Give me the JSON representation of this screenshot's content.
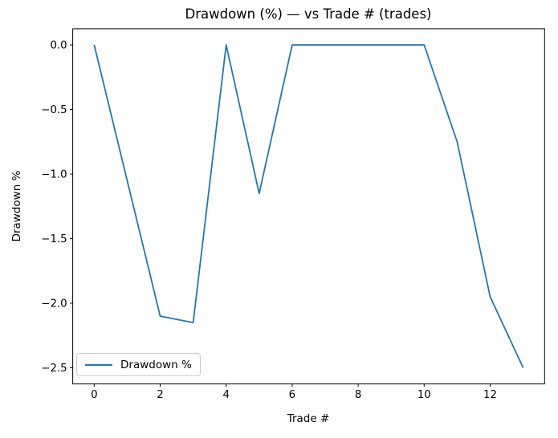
{
  "figure": {
    "title": "Drawdown (%) — vs Trade # (trades)",
    "xlabel": "Trade #",
    "ylabel": "Drawdown %",
    "background_color": "#ffffff",
    "spine_color": "#000000",
    "text_color": "#000000"
  },
  "legend": {
    "label": "Drawdown %",
    "line_color": "#1f77b4",
    "position": "lower left"
  },
  "chart_data": {
    "type": "line",
    "title": "Drawdown (%) — vs Trade # (trades)",
    "xlabel": "Trade #",
    "ylabel": "Drawdown %",
    "grid": false,
    "legend_position": "lower left",
    "xlim": [
      -0.65,
      13.65
    ],
    "ylim": [
      -2.625,
      0.125
    ],
    "x_ticks": [
      0,
      2,
      4,
      6,
      8,
      10,
      12
    ],
    "x_tick_labels": [
      "0",
      "2",
      "4",
      "6",
      "8",
      "10",
      "12"
    ],
    "y_ticks": [
      0.0,
      -0.5,
      -1.0,
      -1.5,
      -2.0,
      -2.5
    ],
    "y_tick_labels": [
      "0.0",
      "−0.5",
      "−1.0",
      "−1.5",
      "−2.0",
      "−2.5"
    ],
    "series": [
      {
        "name": "Drawdown %",
        "color": "#1f77b4",
        "line_width": 1.8,
        "x": [
          0,
          1,
          2,
          3,
          4,
          5,
          6,
          7,
          8,
          9,
          10,
          11,
          12,
          13
        ],
        "y": [
          0.0,
          -1.05,
          -2.1,
          -2.15,
          0.0,
          -1.15,
          0.0,
          0.0,
          0.0,
          0.0,
          0.0,
          -0.75,
          -1.95,
          -2.5
        ]
      }
    ]
  }
}
